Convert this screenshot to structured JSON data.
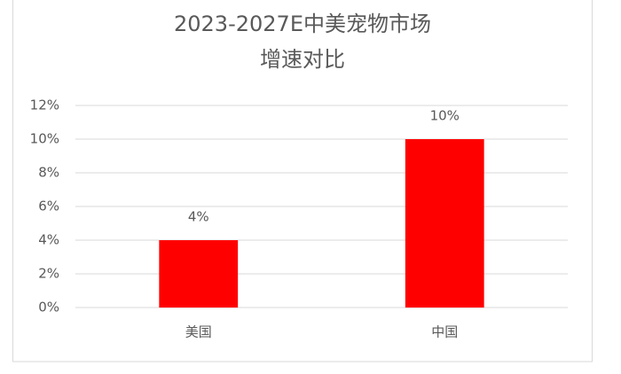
{
  "chart_data": {
    "type": "bar",
    "title": [
      "2023-2027E中美宠物市场",
      "增速对比"
    ],
    "categories": [
      "美国",
      "中国"
    ],
    "values": [
      4,
      10
    ],
    "value_labels": [
      "4%",
      "10%"
    ],
    "color": "#ff0000",
    "ylim": [
      0,
      12
    ],
    "yticks": [
      {
        "value": 0,
        "label": "0%"
      },
      {
        "value": 2,
        "label": "2%"
      },
      {
        "value": 4,
        "label": "4%"
      },
      {
        "value": 6,
        "label": "6%"
      },
      {
        "value": 8,
        "label": "8%"
      },
      {
        "value": 10,
        "label": "10%"
      },
      {
        "value": 12,
        "label": "12%"
      }
    ],
    "grid": true
  }
}
